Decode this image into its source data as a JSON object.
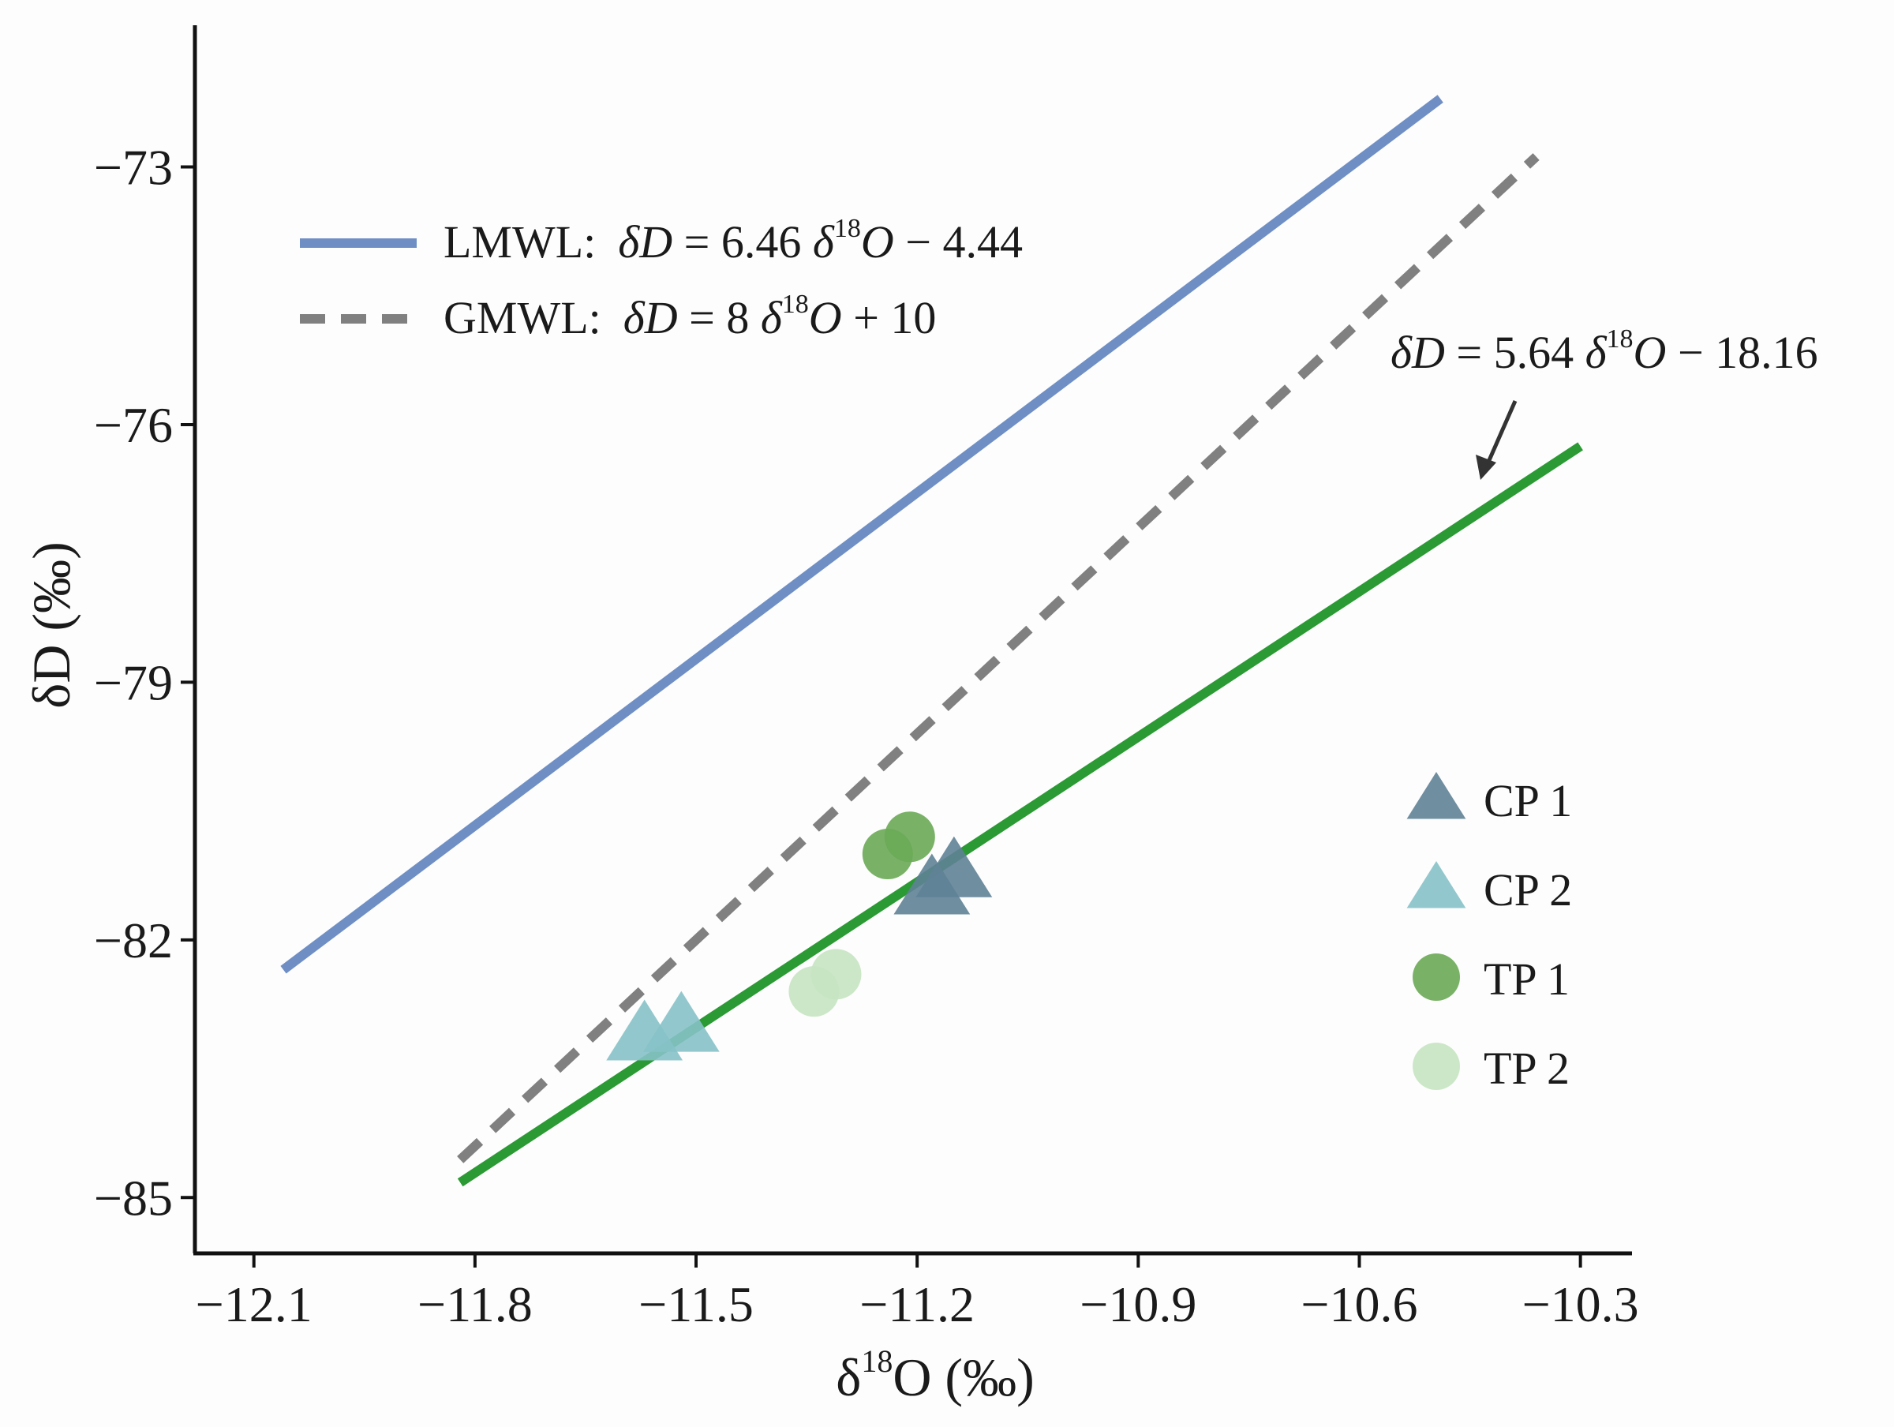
{
  "chart_data": {
    "type": "scatter",
    "xlabel": {
      "delta": "δ",
      "sup": "18",
      "rest": "O (‰)"
    },
    "ylabel": "δD (‰)",
    "xlim": [
      -12.18,
      -10.23
    ],
    "ylim": [
      -85.65,
      -71.35
    ],
    "xticks": [
      -12.1,
      -11.8,
      -11.5,
      -11.2,
      -10.9,
      -10.6,
      -10.3
    ],
    "xtick_labels": [
      "−12.1",
      "−11.8",
      "−11.5",
      "−11.2",
      "−10.9",
      "−10.6",
      "−10.3"
    ],
    "yticks": [
      -73,
      -76,
      -79,
      -82,
      -85
    ],
    "ytick_labels": [
      "−73",
      "−76",
      "−79",
      "−82",
      "−85"
    ],
    "lines": [
      {
        "name": "LMWL",
        "slope": 6.46,
        "intercept": -4.44,
        "x_range": [
          -12.06,
          -10.49
        ],
        "color": "#6f8fc4",
        "style": "solid"
      },
      {
        "name": "GMWL",
        "slope": 8,
        "intercept": 10,
        "x_range": [
          -11.82,
          -10.36
        ],
        "color": "#808080",
        "style": "dashed"
      },
      {
        "name": "Fit",
        "slope": 5.64,
        "intercept": -18.16,
        "x_range": [
          -11.82,
          -10.3
        ],
        "color": "#2b9a34",
        "style": "solid"
      }
    ],
    "legend_lines": [
      {
        "line_key": "LMWL",
        "label": "LMWL:",
        "eq_lhs": "δD",
        "eq_mid": " = 6.46 ",
        "eq_delta": "δ",
        "eq_sup": "18",
        "eq_O": "O",
        "eq_tail": " − 4.44"
      },
      {
        "line_key": "GMWL",
        "label": "GMWL:",
        "eq_lhs": "δD",
        "eq_mid": " = 8 ",
        "eq_delta": "δ",
        "eq_sup": "18",
        "eq_O": "O",
        "eq_tail": " + 10"
      }
    ],
    "annotation": {
      "eq_lhs": "δD",
      "eq_mid": " = 5.64 ",
      "eq_delta": "δ",
      "eq_sup": "18",
      "eq_O": "O",
      "eq_tail": " − 18.16"
    },
    "series": [
      {
        "name": "CP 1",
        "marker": "triangle",
        "color": "#5f8296",
        "points": [
          [
            -11.18,
            -81.4
          ],
          [
            -11.15,
            -81.2
          ]
        ]
      },
      {
        "name": "CP 2",
        "marker": "triangle",
        "color": "#86c2c8",
        "points": [
          [
            -11.57,
            -83.1
          ],
          [
            -11.52,
            -83.0
          ]
        ]
      },
      {
        "name": "TP 1",
        "marker": "circle",
        "color": "#6aaa55",
        "points": [
          [
            -11.24,
            -81.0
          ],
          [
            -11.21,
            -80.8
          ]
        ]
      },
      {
        "name": "TP 2",
        "marker": "circle",
        "color": "#c6e4c2",
        "points": [
          [
            -11.34,
            -82.6
          ],
          [
            -11.31,
            -82.4
          ]
        ]
      }
    ]
  }
}
